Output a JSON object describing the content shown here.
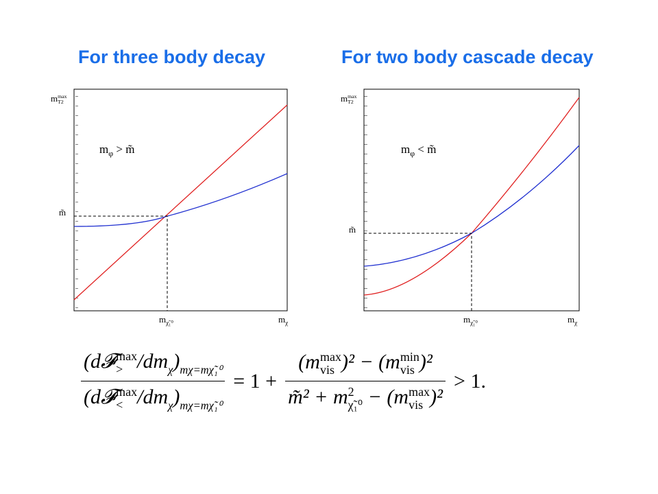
{
  "titles": [
    "For three body decay",
    "For two body cascade decay"
  ],
  "panels": [
    {
      "y_label": {
        "base": "m",
        "sup": "max",
        "sub": "T2"
      },
      "y_marker": "m̃",
      "x_marker": {
        "base": "m",
        "sub": "χ̃₁⁰"
      },
      "x_label": {
        "base": "m",
        "sub": "χ"
      },
      "annotation": {
        "base": "m",
        "sub": "φ",
        "rest": "> m̃"
      }
    },
    {
      "y_label": {
        "base": "m",
        "sup": "max",
        "sub": "T2"
      },
      "y_marker": "m̃",
      "x_marker": {
        "base": "m",
        "sub": "χ̃₁⁰"
      },
      "x_label": {
        "base": "m",
        "sub": "χ"
      },
      "annotation": {
        "base": "m",
        "sub": "φ",
        "rest": "< m̃"
      }
    }
  ],
  "equation": {
    "lhs_numerator": {
      "open": "(d𝓕",
      "sup": "max",
      "sub": ">",
      "per": "/dm",
      "per_sub": "χ",
      "close": ")",
      "at": "mχ=mχ̃₁⁰"
    },
    "lhs_denominator": {
      "open": "(d𝓕",
      "sup": "max",
      "sub": "<",
      "per": "/dm",
      "per_sub": "χ",
      "close": ")",
      "at": "mχ=mχ̃₁⁰"
    },
    "equals": "= 1 +",
    "rhs_numerator": {
      "a": "(m",
      "a_sup": "max",
      "a_sub": "vis",
      "b": ")² − (m",
      "b_sup": "min",
      "b_sub": "vis",
      "c": ")²"
    },
    "rhs_denominator": {
      "a": "m̃² + m",
      "a_sup": "2",
      "a_sub": "χ̃₁⁰",
      "b": " − (m",
      "b_sup": "max",
      "b_sub": "vis",
      "c": ")²"
    },
    "result": "> 1."
  }
}
